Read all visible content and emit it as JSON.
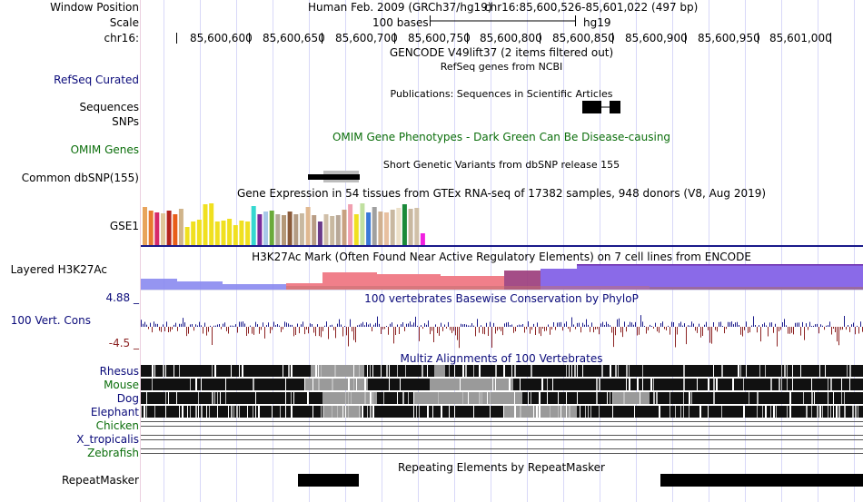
{
  "labels": {
    "window_position": "Window Position",
    "scale": "Scale",
    "chrom": "chr16:",
    "refseq": "RefSeq Curated",
    "sequences": "Sequences",
    "snps": "SNPs",
    "omim": "OMIM Genes",
    "common_snp": "Common dbSNP(155)",
    "gse1": "GSE1",
    "h3k27ac": "Layered H3K27Ac",
    "cons_max": "4.88 _",
    "cons_label": "100 Vert. Cons",
    "cons_min": "-4.5 _",
    "rhesus": "Rhesus",
    "mouse": "Mouse",
    "dog": "Dog",
    "elephant": "Elephant",
    "chicken": "Chicken",
    "x_tropicalis": "X_tropicalis",
    "zebrafish": "Zebrafish",
    "repeatmasker": "RepeatMasker"
  },
  "header": {
    "assembly": "Human Feb. 2009 (GRCh37/hg19)",
    "position": "chr16:85,600,526-85,601,022 (497 bp)",
    "scale_text": "100 bases",
    "scale_db": "hg19"
  },
  "ruler": {
    "ticks": [
      "85,600,600",
      "85,600,650",
      "85,600,700",
      "85,600,750",
      "85,600,800",
      "85,600,850",
      "85,600,900",
      "85,600,950",
      "85,601,000"
    ]
  },
  "track_titles": {
    "gencode": "GENCODE V49lift37 (2 items filtered out)",
    "refseq_desc": "RefSeq genes from NCBI",
    "publications": "Publications: Sequences in Scientific Articles",
    "omim": "OMIM Gene Phenotypes - Dark Green Can Be Disease-causing",
    "dbsnp": "Short Genetic Variants from dbSNP release 155",
    "gtex": "Gene Expression in 54 tissues from GTEx RNA-seq of 17382 samples, 948 donors (V8, Aug 2019)",
    "h3k27ac": "H3K27Ac Mark (Often Found Near Active Regulatory Elements) on 7 cell lines from ENCODE",
    "phylop": "100 vertebrates Basewise Conservation by PhyloP",
    "multiz": "Multiz Alignments of 100 Vertebrates",
    "repeatmasker": "Repeating Elements by RepeatMasker"
  },
  "colors": {
    "navy": "#0a0a7a",
    "omim_green": "#0b6e0b",
    "gtex_base": "#1a1a8a",
    "cons_pos": "#1c1c8c",
    "cons_neg": "#8c2323"
  },
  "gtex_bars": [
    {
      "color": "#e8a45c",
      "value": 42
    },
    {
      "color": "#e87a2f",
      "value": 38
    },
    {
      "color": "#d62a6a",
      "value": 36
    },
    {
      "color": "#e0c79a",
      "value": 35
    },
    {
      "color": "#b4241e",
      "value": 38
    },
    {
      "color": "#e85e1a",
      "value": 34
    },
    {
      "color": "#d0b48a",
      "value": 40
    },
    {
      "color": "#f0e020",
      "value": 20
    },
    {
      "color": "#f0e020",
      "value": 26
    },
    {
      "color": "#f0e020",
      "value": 28
    },
    {
      "color": "#f0e020",
      "value": 45
    },
    {
      "color": "#f0e020",
      "value": 46
    },
    {
      "color": "#f0e020",
      "value": 26
    },
    {
      "color": "#f0e020",
      "value": 27
    },
    {
      "color": "#f0e020",
      "value": 29
    },
    {
      "color": "#f0e020",
      "value": 22
    },
    {
      "color": "#f0e020",
      "value": 27
    },
    {
      "color": "#f0e020",
      "value": 26
    },
    {
      "color": "#35d8d0",
      "value": 43
    },
    {
      "color": "#7a2a9a",
      "value": 34
    },
    {
      "color": "#a8c8e8",
      "value": 37
    },
    {
      "color": "#6aaa3a",
      "value": 38
    },
    {
      "color": "#b4a898",
      "value": 34
    },
    {
      "color": "#b49878",
      "value": 33
    },
    {
      "color": "#8a5a3a",
      "value": 37
    },
    {
      "color": "#b49c84",
      "value": 34
    },
    {
      "color": "#c8b8a0",
      "value": 35
    },
    {
      "color": "#e0b890",
      "value": 42
    },
    {
      "color": "#b89c84",
      "value": 33
    },
    {
      "color": "#6a3a8a",
      "value": 26
    },
    {
      "color": "#d0bfa8",
      "value": 34
    },
    {
      "color": "#c8b8a0",
      "value": 32
    },
    {
      "color": "#b8a898",
      "value": 33
    },
    {
      "color": "#c8a080",
      "value": 39
    },
    {
      "color": "#f0a0b0",
      "value": 45
    },
    {
      "color": "#f0e020",
      "value": 34
    },
    {
      "color": "#c0e0a0",
      "value": 46
    },
    {
      "color": "#3a7ad8",
      "value": 36
    },
    {
      "color": "#a0a0a0",
      "value": 42
    },
    {
      "color": "#d0b090",
      "value": 37
    },
    {
      "color": "#e8c0a0",
      "value": 36
    },
    {
      "color": "#c8b8a0",
      "value": 39
    },
    {
      "color": "#ece0c8",
      "value": 41
    },
    {
      "color": "#1a8a3a",
      "value": 45
    },
    {
      "color": "#c8b8a0",
      "value": 40
    },
    {
      "color": "#d0c0a8",
      "value": 41
    },
    {
      "color": "#f020e0",
      "value": 13
    }
  ]
}
